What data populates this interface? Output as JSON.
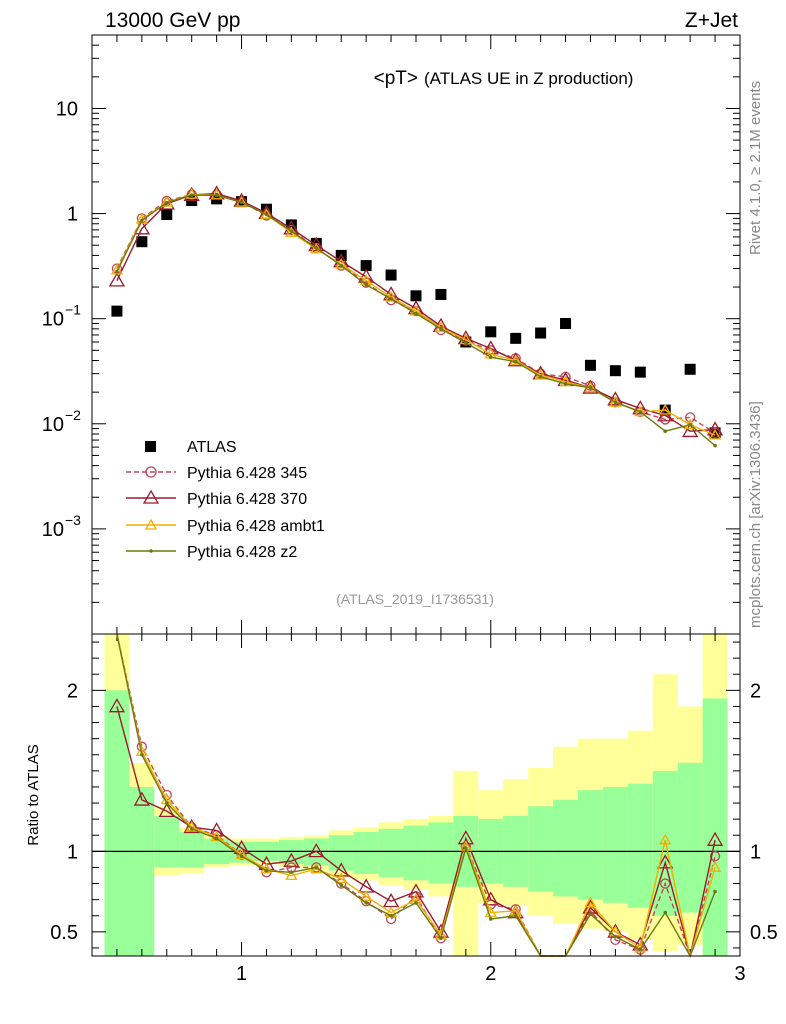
{
  "header": {
    "left_title": "13000 GeV pp",
    "right_title": "Z+Jet"
  },
  "side_labels": {
    "right_top": "Rivet 4.1.0, ≥ 2.1M events",
    "right_bottom": "mcplots.cern.ch [arXiv:1306.3436]"
  },
  "chart_data": {
    "type": "line",
    "title": "<pT>",
    "subtitle": "(ATLAS UE in Z production)",
    "analysis_id": "(ATLAS_2019_I1736531)",
    "x": [
      0.5,
      0.6,
      0.7,
      0.8,
      0.9,
      1.0,
      1.1,
      1.2,
      1.3,
      1.4,
      1.5,
      1.6,
      1.7,
      1.8,
      1.9,
      2.0,
      2.1,
      2.2,
      2.3,
      2.4,
      2.5,
      2.6,
      2.7,
      2.8,
      2.9
    ],
    "xlim": [
      0.4,
      3.0
    ],
    "xticks": [
      1,
      2,
      3
    ],
    "xtick_labels": [
      "1",
      "2",
      "3"
    ],
    "main": {
      "yscale": "log",
      "ylim": [
        0.0001,
        50
      ],
      "yticks": [
        {
          "value": 0.001,
          "label": "10",
          "exp": "−3"
        },
        {
          "value": 0.01,
          "label": "10",
          "exp": "−2"
        },
        {
          "value": 0.1,
          "label": "10",
          "exp": "−1"
        },
        {
          "value": 1,
          "label": "1",
          "exp": ""
        },
        {
          "value": 10,
          "label": "10",
          "exp": ""
        }
      ]
    },
    "ratio": {
      "ylabel": "Ratio to ATLAS",
      "ylim": [
        0.35,
        2.35
      ],
      "yticks": [
        0.5,
        1,
        2
      ],
      "ytick_labels": [
        "0.5",
        "1",
        "2"
      ],
      "reference": 1,
      "band_green_lo": [
        0.35,
        0.35,
        0.9,
        0.9,
        0.92,
        0.93,
        0.94,
        0.92,
        0.91,
        0.88,
        0.86,
        0.84,
        0.82,
        0.8,
        0.78,
        0.8,
        0.78,
        0.75,
        0.72,
        0.7,
        0.68,
        0.65,
        0.6,
        0.62,
        0.35
      ],
      "band_green_hi": [
        2.0,
        1.4,
        1.22,
        1.12,
        1.08,
        1.06,
        1.06,
        1.07,
        1.08,
        1.1,
        1.12,
        1.14,
        1.16,
        1.18,
        1.22,
        1.2,
        1.22,
        1.28,
        1.32,
        1.38,
        1.4,
        1.42,
        1.5,
        1.55,
        1.95
      ],
      "band_yellow_lo": [
        0.35,
        0.8,
        0.85,
        0.86,
        0.9,
        0.91,
        0.92,
        0.9,
        0.88,
        0.84,
        0.82,
        0.79,
        0.76,
        0.72,
        0.35,
        0.68,
        0.66,
        0.6,
        0.55,
        0.52,
        0.5,
        0.45,
        0.38,
        0.42,
        0.35
      ],
      "band_yellow_hi": [
        2.35,
        1.55,
        1.28,
        1.15,
        1.1,
        1.08,
        1.08,
        1.09,
        1.1,
        1.13,
        1.15,
        1.18,
        1.2,
        1.22,
        1.5,
        1.38,
        1.45,
        1.52,
        1.65,
        1.7,
        1.7,
        1.75,
        2.1,
        1.9,
        2.35
      ]
    },
    "series": [
      {
        "name": "ATLAS",
        "color": "#000000",
        "marker": "square",
        "values": [
          0.118,
          0.54,
          0.98,
          1.33,
          1.38,
          1.3,
          1.1,
          0.78,
          0.52,
          0.4,
          0.32,
          0.26,
          0.165,
          0.17,
          0.06,
          0.075,
          0.065,
          0.073,
          0.09,
          0.036,
          0.032,
          0.031,
          0.0135,
          0.033,
          0.0082
        ]
      },
      {
        "name": "Pythia 6.428 345",
        "color": "#c0485a",
        "marker": "circle",
        "dashed": true,
        "values": [
          0.3,
          0.9,
          1.32,
          1.52,
          1.52,
          1.29,
          0.96,
          0.7,
          0.47,
          0.32,
          0.22,
          0.15,
          0.118,
          0.078,
          0.062,
          0.05,
          0.042,
          0.03,
          0.028,
          0.023,
          0.016,
          0.013,
          0.011,
          0.0115,
          0.0082
        ],
        "ratio": [
          2.55,
          1.65,
          1.35,
          1.15,
          1.1,
          0.98,
          0.87,
          0.9,
          0.9,
          0.8,
          0.69,
          0.58,
          0.72,
          0.46,
          1.03,
          0.67,
          0.64,
          0.33,
          0.31,
          0.63,
          0.45,
          0.39,
          0.8,
          0.34,
          0.97
        ]
      },
      {
        "name": "Pythia 6.428 370",
        "color": "#9a1b2e",
        "marker": "triangle",
        "dashed": false,
        "values": [
          0.23,
          0.72,
          1.24,
          1.5,
          1.55,
          1.32,
          1.01,
          0.72,
          0.5,
          0.35,
          0.25,
          0.17,
          0.125,
          0.085,
          0.065,
          0.052,
          0.04,
          0.03,
          0.026,
          0.022,
          0.017,
          0.014,
          0.012,
          0.0085,
          0.0088
        ],
        "ratio": [
          1.9,
          1.32,
          1.25,
          1.15,
          1.13,
          1.02,
          0.92,
          0.94,
          1.0,
          0.88,
          0.78,
          0.69,
          0.75,
          0.5,
          1.08,
          0.7,
          0.62,
          0.35,
          0.3,
          0.65,
          0.5,
          0.42,
          0.93,
          0.28,
          1.07
        ]
      },
      {
        "name": "Pythia 6.428 ambt1",
        "color": "#f0b000",
        "marker": "triangle",
        "dashed": false,
        "values": [
          0.29,
          0.88,
          1.28,
          1.52,
          1.5,
          1.28,
          0.98,
          0.66,
          0.46,
          0.33,
          0.23,
          0.16,
          0.118,
          0.082,
          0.063,
          0.046,
          0.04,
          0.029,
          0.025,
          0.022,
          0.016,
          0.013,
          0.0135,
          0.0098,
          0.0078
        ],
        "ratio": [
          2.5,
          1.62,
          1.32,
          1.15,
          1.09,
          0.98,
          0.89,
          0.85,
          0.89,
          0.83,
          0.72,
          0.62,
          0.7,
          0.48,
          1.03,
          0.62,
          0.63,
          0.34,
          0.3,
          0.68,
          0.5,
          0.4,
          1.07,
          0.3,
          0.9
        ]
      },
      {
        "name": "Pythia 6.428 z2",
        "color": "#6b7a0f",
        "marker": "dot",
        "dashed": false,
        "values": [
          0.28,
          0.86,
          1.27,
          1.5,
          1.49,
          1.28,
          0.98,
          0.68,
          0.47,
          0.32,
          0.21,
          0.155,
          0.112,
          0.08,
          0.059,
          0.043,
          0.039,
          0.028,
          0.024,
          0.022,
          0.016,
          0.013,
          0.0085,
          0.0098,
          0.0062
        ],
        "ratio": [
          2.48,
          1.6,
          1.3,
          1.14,
          1.08,
          0.97,
          0.88,
          0.87,
          0.9,
          0.79,
          0.68,
          0.6,
          0.68,
          0.46,
          1.02,
          0.58,
          0.6,
          0.32,
          0.29,
          0.61,
          0.47,
          0.39,
          0.62,
          0.3,
          0.75
        ]
      }
    ]
  }
}
